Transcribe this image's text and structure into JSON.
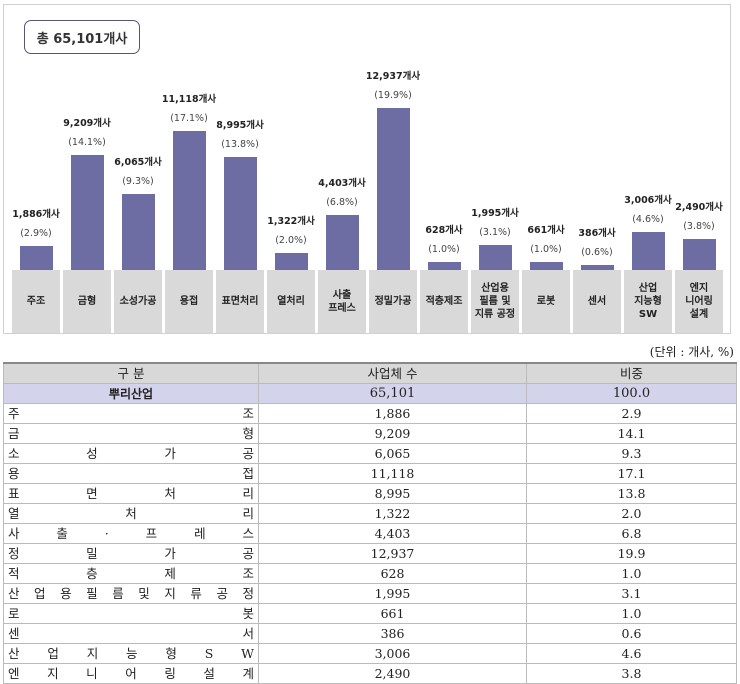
{
  "chart_data": {
    "type": "bar",
    "total_label": "총 65,101개사",
    "categories": [
      "주조",
      "금형",
      "소성가공",
      "용접",
      "표면처리",
      "열처리",
      "사출\n프레스",
      "정밀가공",
      "적층제조",
      "산업용\n필름 및\n지류 공정",
      "로봇",
      "센서",
      "산업\n지능형\nSW",
      "엔지\n니어링\n설계"
    ],
    "values": [
      1886,
      9209,
      6065,
      11118,
      8995,
      1322,
      4403,
      12937,
      628,
      1995,
      661,
      386,
      3006,
      2490
    ],
    "value_labels": [
      "1,886개사",
      "9,209개사",
      "6,065개사",
      "11,118개사",
      "8,995개사",
      "1,322개사",
      "4,403개사",
      "12,937개사",
      "628개사",
      "1,995개사",
      "661개사",
      "386개사",
      "3,006개사",
      "2,490개사"
    ],
    "percent_labels": [
      "(2.9%)",
      "(14.1%)",
      "(9.3%)",
      "(17.1%)",
      "(13.8%)",
      "(2.0%)",
      "(6.8%)",
      "(19.9%)",
      "(1.0%)",
      "(3.1%)",
      "(1.0%)",
      "(0.6%)",
      "(4.6%)",
      "(3.8%)"
    ],
    "ylim": [
      0,
      12937
    ],
    "bar_color": "#6d6ca3",
    "grid": false
  },
  "table": {
    "unit": "(단위 : 개사, %)",
    "headers": [
      "구  분",
      "사업체 수",
      "비중"
    ],
    "total": {
      "label": "뿌리산업",
      "count": "65,101",
      "share": "100.0"
    },
    "rows": [
      {
        "label": "주조",
        "count": "1,886",
        "share": "2.9"
      },
      {
        "label": "금형",
        "count": "9,209",
        "share": "14.1"
      },
      {
        "label": "소성가공",
        "count": "6,065",
        "share": "9.3"
      },
      {
        "label": "용접",
        "count": "11,118",
        "share": "17.1"
      },
      {
        "label": "표면처리",
        "count": "8,995",
        "share": "13.8"
      },
      {
        "label": "열처리",
        "count": "1,322",
        "share": "2.0"
      },
      {
        "label": "사출·프레스",
        "count": "4,403",
        "share": "6.8"
      },
      {
        "label": "정밀가공",
        "count": "12,937",
        "share": "19.9"
      },
      {
        "label": "적층제조",
        "count": "628",
        "share": "1.0"
      },
      {
        "label": "산업용필름및지류공정",
        "count": "1,995",
        "share": "3.1"
      },
      {
        "label": "로봇",
        "count": "661",
        "share": "1.0"
      },
      {
        "label": "센서",
        "count": "386",
        "share": "0.6"
      },
      {
        "label": "산업지능형SW",
        "count": "3,006",
        "share": "4.6"
      },
      {
        "label": "엔지니어링설계",
        "count": "2,490",
        "share": "3.8"
      }
    ]
  }
}
